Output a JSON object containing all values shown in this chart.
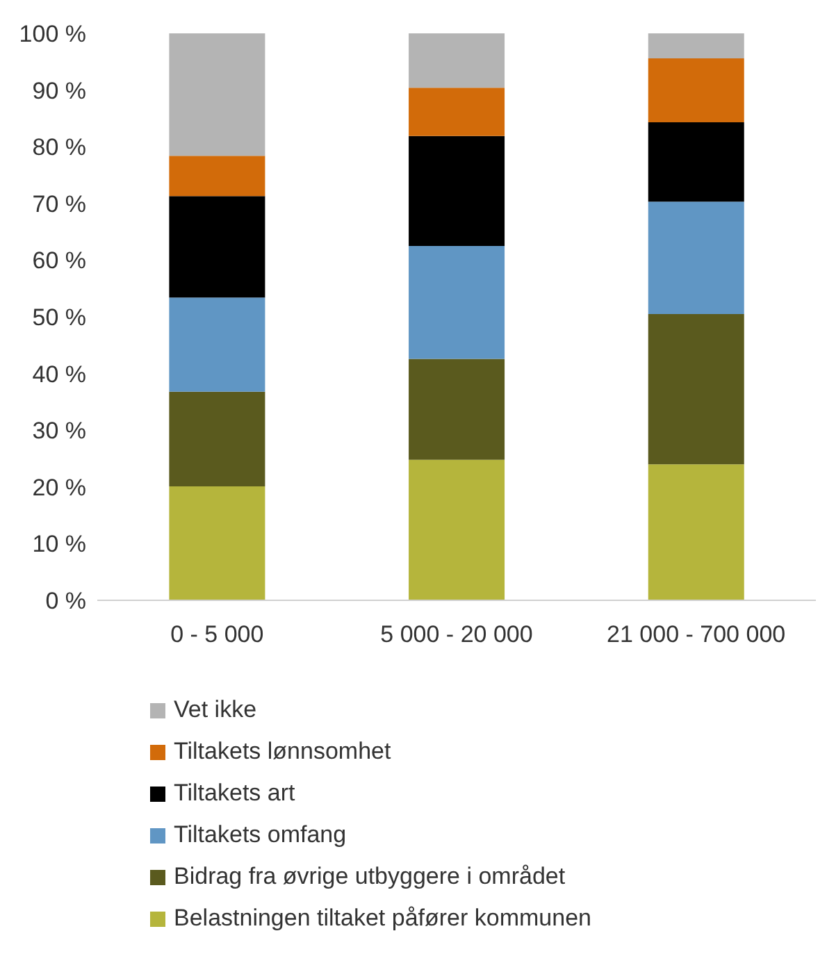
{
  "chart_data": {
    "type": "bar",
    "stacked": true,
    "categories": [
      "0 - 5 000",
      "5 000 - 20 000",
      "21 000 - 700 000"
    ],
    "series": [
      {
        "name": "Belastningen tiltaket påfører kommunen",
        "color": "#b5b53c",
        "values": [
          20.1,
          24.8,
          24.0
        ]
      },
      {
        "name": "Bidrag fra øvrige utbyggere i området",
        "color": "#5a5a1e",
        "values": [
          16.7,
          17.8,
          26.5
        ]
      },
      {
        "name": "Tiltakets omfang",
        "color": "#6096c4",
        "values": [
          16.6,
          19.9,
          19.8
        ]
      },
      {
        "name": "Tiltakets art",
        "color": "#000000",
        "values": [
          17.9,
          19.4,
          14.0
        ]
      },
      {
        "name": "Tiltakets lønnsomhet",
        "color": "#d26b0a",
        "values": [
          7.1,
          8.5,
          11.3
        ]
      },
      {
        "name": "Vet ikke",
        "color": "#b4b4b4",
        "values": [
          21.6,
          9.6,
          4.4
        ]
      }
    ],
    "ylim": [
      0,
      100
    ],
    "yticks": [
      {
        "value": 0,
        "label": "0 %"
      },
      {
        "value": 10,
        "label": "10 %"
      },
      {
        "value": 20,
        "label": "20 %"
      },
      {
        "value": 30,
        "label": "30 %"
      },
      {
        "value": 40,
        "label": "40 %"
      },
      {
        "value": 50,
        "label": "50 %"
      },
      {
        "value": 60,
        "label": "60 %"
      },
      {
        "value": 70,
        "label": "70 %"
      },
      {
        "value": 80,
        "label": "80 %"
      },
      {
        "value": 90,
        "label": "90 %"
      },
      {
        "value": 100,
        "label": "100 %"
      }
    ],
    "grid": false,
    "legend": "bottom"
  }
}
